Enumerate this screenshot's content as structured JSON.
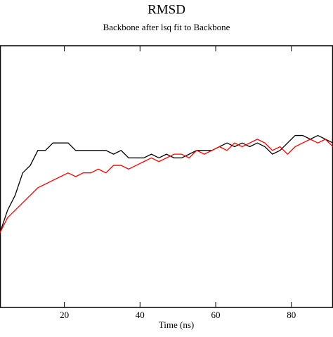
{
  "chart_data": {
    "type": "line",
    "title": "RMSD",
    "subtitle": "Backbone after lsq fit to Backbone",
    "x_label": "Time (ns)",
    "x": [
      3,
      5,
      7,
      9,
      11,
      13,
      15,
      17,
      19,
      21,
      23,
      25,
      27,
      29,
      31,
      33,
      35,
      37,
      39,
      41,
      43,
      45,
      47,
      49,
      51,
      53,
      55,
      57,
      59,
      61,
      63,
      65,
      67,
      69,
      71,
      73,
      75,
      77,
      79,
      81,
      83,
      85,
      87,
      89,
      91
    ],
    "series": [
      {
        "color": "#000000",
        "values": [
          0.1,
          0.13,
          0.15,
          0.18,
          0.19,
          0.21,
          0.21,
          0.22,
          0.22,
          0.22,
          0.21,
          0.21,
          0.21,
          0.21,
          0.21,
          0.205,
          0.21,
          0.2,
          0.2,
          0.2,
          0.205,
          0.2,
          0.205,
          0.2,
          0.2,
          0.205,
          0.21,
          0.21,
          0.21,
          0.215,
          0.22,
          0.215,
          0.22,
          0.215,
          0.22,
          0.215,
          0.205,
          0.21,
          0.22,
          0.23,
          0.23,
          0.225,
          0.23,
          0.225,
          0.22
        ]
      },
      {
        "color": "#ff0000",
        "values": [
          0.1,
          0.12,
          0.13,
          0.14,
          0.15,
          0.16,
          0.165,
          0.17,
          0.175,
          0.18,
          0.175,
          0.18,
          0.18,
          0.185,
          0.18,
          0.19,
          0.19,
          0.185,
          0.19,
          0.195,
          0.2,
          0.195,
          0.2,
          0.205,
          0.205,
          0.2,
          0.21,
          0.205,
          0.21,
          0.215,
          0.21,
          0.22,
          0.215,
          0.22,
          0.225,
          0.22,
          0.21,
          0.215,
          0.205,
          0.215,
          0.22,
          0.225,
          0.22,
          0.225,
          0.215
        ]
      }
    ],
    "xlim": [
      3,
      91
    ],
    "ylim": [
      0,
      0.35
    ],
    "xticks": [
      20,
      40,
      60,
      80
    ]
  }
}
